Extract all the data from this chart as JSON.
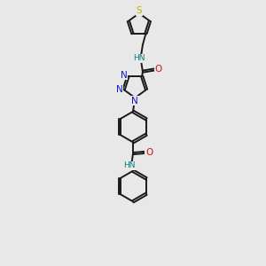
{
  "bg_color": "#e8e8e8",
  "bond_color": "#1a1a1a",
  "n_color": "#1414cc",
  "o_color": "#cc1414",
  "s_color": "#b8b800",
  "hn_color": "#008080",
  "line_width": 1.4,
  "fs": 7.0,
  "xlim": [
    0,
    6
  ],
  "ylim": [
    0,
    13
  ]
}
